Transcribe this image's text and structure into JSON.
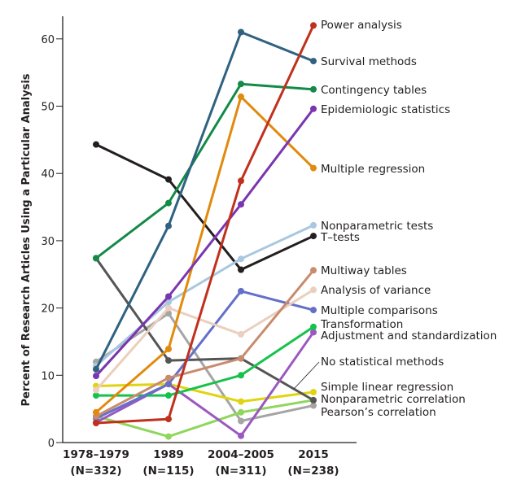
{
  "chart_data": {
    "type": "line",
    "title": "",
    "xlabel": "",
    "ylabel": "Percent of Research Articles Using a Particular Analysis",
    "ylim": [
      0,
      63
    ],
    "yticks": [
      0,
      10,
      20,
      30,
      40,
      50,
      60
    ],
    "grid": false,
    "legend": "direct labels at right end of lines",
    "categories": [
      {
        "period": "1978–1979",
        "n": "(N=332)"
      },
      {
        "period": "1989",
        "n": "(N=115)"
      },
      {
        "period": "2004–2005",
        "n": "(N=311)"
      },
      {
        "period": "2015",
        "n": "(N=238)"
      }
    ],
    "series": [
      {
        "name": "Power analysis",
        "color": "#c0311d",
        "values": [
          2.9,
          3.5,
          38.9,
          62.0
        ]
      },
      {
        "name": "Survival methods",
        "color": "#2f6280",
        "values": [
          10.9,
          32.2,
          61.0,
          56.7
        ]
      },
      {
        "name": "Contingency tables",
        "color": "#138a48",
        "values": [
          27.4,
          35.6,
          53.3,
          52.5
        ]
      },
      {
        "name": "Epidemiologic statistics",
        "color": "#7a35b0",
        "values": [
          9.9,
          21.7,
          35.4,
          49.6
        ]
      },
      {
        "name": "Multiple regression",
        "color": "#e08a0e",
        "values": [
          4.5,
          13.9,
          51.4,
          40.8
        ]
      },
      {
        "name": "Nonparametric tests",
        "color": "#a9c8e0",
        "values": [
          11.4,
          20.9,
          27.3,
          32.3
        ]
      },
      {
        "name": "T–tests",
        "color": "#231f20",
        "values": [
          44.3,
          39.1,
          25.7,
          30.7
        ]
      },
      {
        "name": "Multiway tables",
        "color": "#c98b6d",
        "values": [
          3.9,
          9.6,
          12.5,
          25.6
        ]
      },
      {
        "name": "Analysis of variance",
        "color": "#ebcfbf",
        "values": [
          7.8,
          20.0,
          16.1,
          22.7
        ]
      },
      {
        "name": "Multiple comparisons",
        "color": "#6470c8",
        "values": [
          3.6,
          8.7,
          22.5,
          19.7
        ]
      },
      {
        "name": "Transformation",
        "color": "#17c24c",
        "values": [
          7.0,
          7.0,
          10.0,
          17.2
        ]
      },
      {
        "name": "Adjustment and standardization",
        "color": "#9b58c0",
        "values": [
          3.0,
          8.7,
          1.0,
          16.4
        ]
      },
      {
        "name": "No statistical methods",
        "color": "#555555",
        "values": [
          27.4,
          12.2,
          12.5,
          6.3
        ]
      },
      {
        "name": "Simple linear regression",
        "color": "#e0d412",
        "values": [
          8.4,
          8.7,
          6.1,
          7.5
        ]
      },
      {
        "name": "Nonparametric correlation",
        "color": "#8fd65c",
        "values": [
          3.9,
          0.9,
          4.5,
          6.3
        ]
      },
      {
        "name": "Pearson’s correlation",
        "color": "#a5a5a5",
        "values": [
          12.0,
          19.2,
          3.2,
          5.5
        ]
      }
    ]
  }
}
